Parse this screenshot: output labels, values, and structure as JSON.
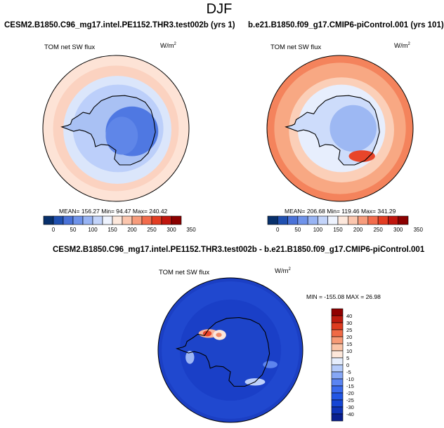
{
  "figure": {
    "season_title": "DJF"
  },
  "panels": [
    {
      "title": "CESM2.B1850.C96_mg17.intel.PE1152.THR3.test002b (yrs 1)",
      "field_label": "TOM net SW flux",
      "units_base": "W/m",
      "units_exp": "2",
      "stats": "MEAN= 156.27  Min=  94.47  Max= 240.42"
    },
    {
      "title": "b.e21.B1850.f09_g17.CMIP6-piControl.001 (yrs 101)",
      "field_label": "TOM net SW flux",
      "units_base": "W/m",
      "units_exp": "2",
      "stats": "MEAN= 206.68  Min= 119.46  Max= 341.29"
    },
    {
      "title": "CESM2.B1850.C96_mg17.intel.PE1152.THR3.test002b - b.e21.B1850.f09_g17.CMIP6-piControl.001",
      "field_label": "TOM net SW flux",
      "units_base": "W/m",
      "units_exp": "2",
      "stats": "MIN = -155.08 MAX =  26.98"
    }
  ],
  "chart_data": [
    {
      "type": "heatmap",
      "projection": "south-polar-stereographic",
      "title": "CESM2.B1850.C96_mg17.intel.PE1152.THR3.test002b (yrs 1)",
      "variable": "TOM net SW flux",
      "units": "W/m2",
      "mean": 156.27,
      "min": 94.47,
      "max": 240.42,
      "colorbar_levels": [
        0,
        50,
        100,
        150,
        200,
        250,
        300,
        350
      ],
      "colorbar_orientation": "horizontal"
    },
    {
      "type": "heatmap",
      "projection": "south-polar-stereographic",
      "title": "b.e21.B1850.f09_g17.CMIP6-piControl.001 (yrs 101)",
      "variable": "TOM net SW flux",
      "units": "W/m2",
      "mean": 206.68,
      "min": 119.46,
      "max": 341.29,
      "colorbar_levels": [
        0,
        50,
        100,
        150,
        200,
        250,
        300,
        350
      ],
      "colorbar_orientation": "horizontal"
    },
    {
      "type": "heatmap",
      "projection": "south-polar-stereographic",
      "title": "CESM2.B1850.C96_mg17.intel.PE1152.THR3.test002b - b.e21.B1850.f09_g17.CMIP6-piControl.001",
      "variable": "TOM net SW flux",
      "units": "W/m2",
      "min": -155.08,
      "max": 26.98,
      "colorbar_levels": [
        40,
        30,
        25,
        20,
        15,
        10,
        5,
        0,
        -5,
        -10,
        -15,
        -20,
        -25,
        -30,
        -40
      ],
      "colorbar_orientation": "vertical"
    }
  ],
  "colors": {
    "seq_bar": [
      "#08306b",
      "#2050b0",
      "#4a72d8",
      "#6f93ea",
      "#98b4f4",
      "#c3d4fa",
      "#eef3fe",
      "#fde8dc",
      "#fbc6ae",
      "#f79c7c",
      "#f26c4c",
      "#e33d22",
      "#c0160e",
      "#8b0000"
    ],
    "diff_bar": [
      "#0a1f8f",
      "#0f33b7",
      "#1545d4",
      "#2256e4",
      "#3a6aed",
      "#5a84f2",
      "#86a7f6",
      "#b5cbfa",
      "#e6eefd",
      "#fde7da",
      "#fbc4a7",
      "#f79a76",
      "#f06a46",
      "#de3b1f",
      "#be1a0e",
      "#900000"
    ],
    "ocean_a": "#fbdccd",
    "ocean_b": "#f3794f",
    "land_a": "#9bb7f1",
    "land_b": "#c8d9fa",
    "diff_base": "#1b3fc4"
  }
}
